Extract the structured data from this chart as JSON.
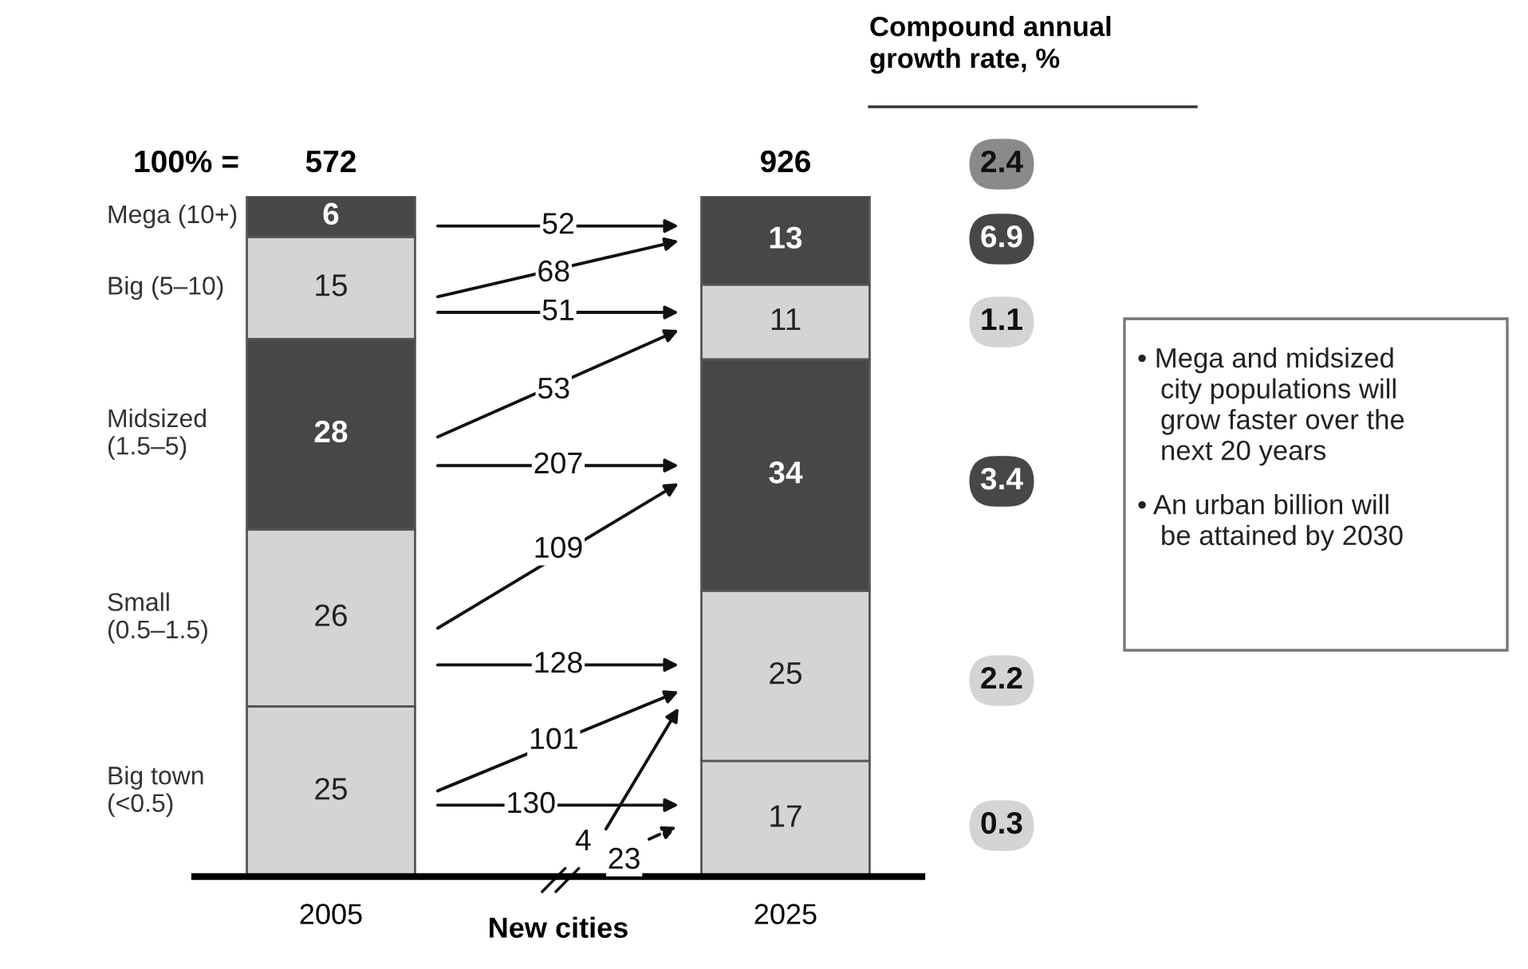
{
  "chart_data": {
    "type": "bar",
    "stacked": true,
    "data_labels": true,
    "tick_labels": "x",
    "legend": false,
    "grid": false,
    "categories": [
      "2005",
      "New cities",
      "2025"
    ],
    "series": [
      {
        "name": "Big town\n(<0.5)",
        "color": "#d4d4d4",
        "values": [
          25,
          null,
          17
        ]
      },
      {
        "name": "Small\n(0.5–1.5)",
        "color": "#d4d4d4",
        "values": [
          26,
          null,
          25
        ]
      },
      {
        "name": "Midsized\n(1.5–5)",
        "color": "#474747",
        "values": [
          28,
          null,
          34
        ]
      },
      {
        "name": "Big (5–10)",
        "color": "#d4d4d4",
        "values": [
          15,
          null,
          11
        ]
      },
      {
        "name": "Mega (10+)",
        "color": "#474747",
        "values": [
          6,
          null,
          13
        ]
      }
    ],
    "annotations": [
      "100% =",
      "572",
      "926",
      "Compound annual\ngrowth rate, %",
      "2.4",
      "6.9",
      "1.1",
      "3.4",
      "2.2",
      "0.3",
      "52",
      "68",
      "51",
      "53",
      "207",
      "109",
      "128",
      "101",
      "130",
      "4",
      "23",
      "• Mega and midsized\n   city populations will\n   grow faster over the\n   next 20 years",
      "• An urban billion will\n   be attained by 2030"
    ]
  }
}
